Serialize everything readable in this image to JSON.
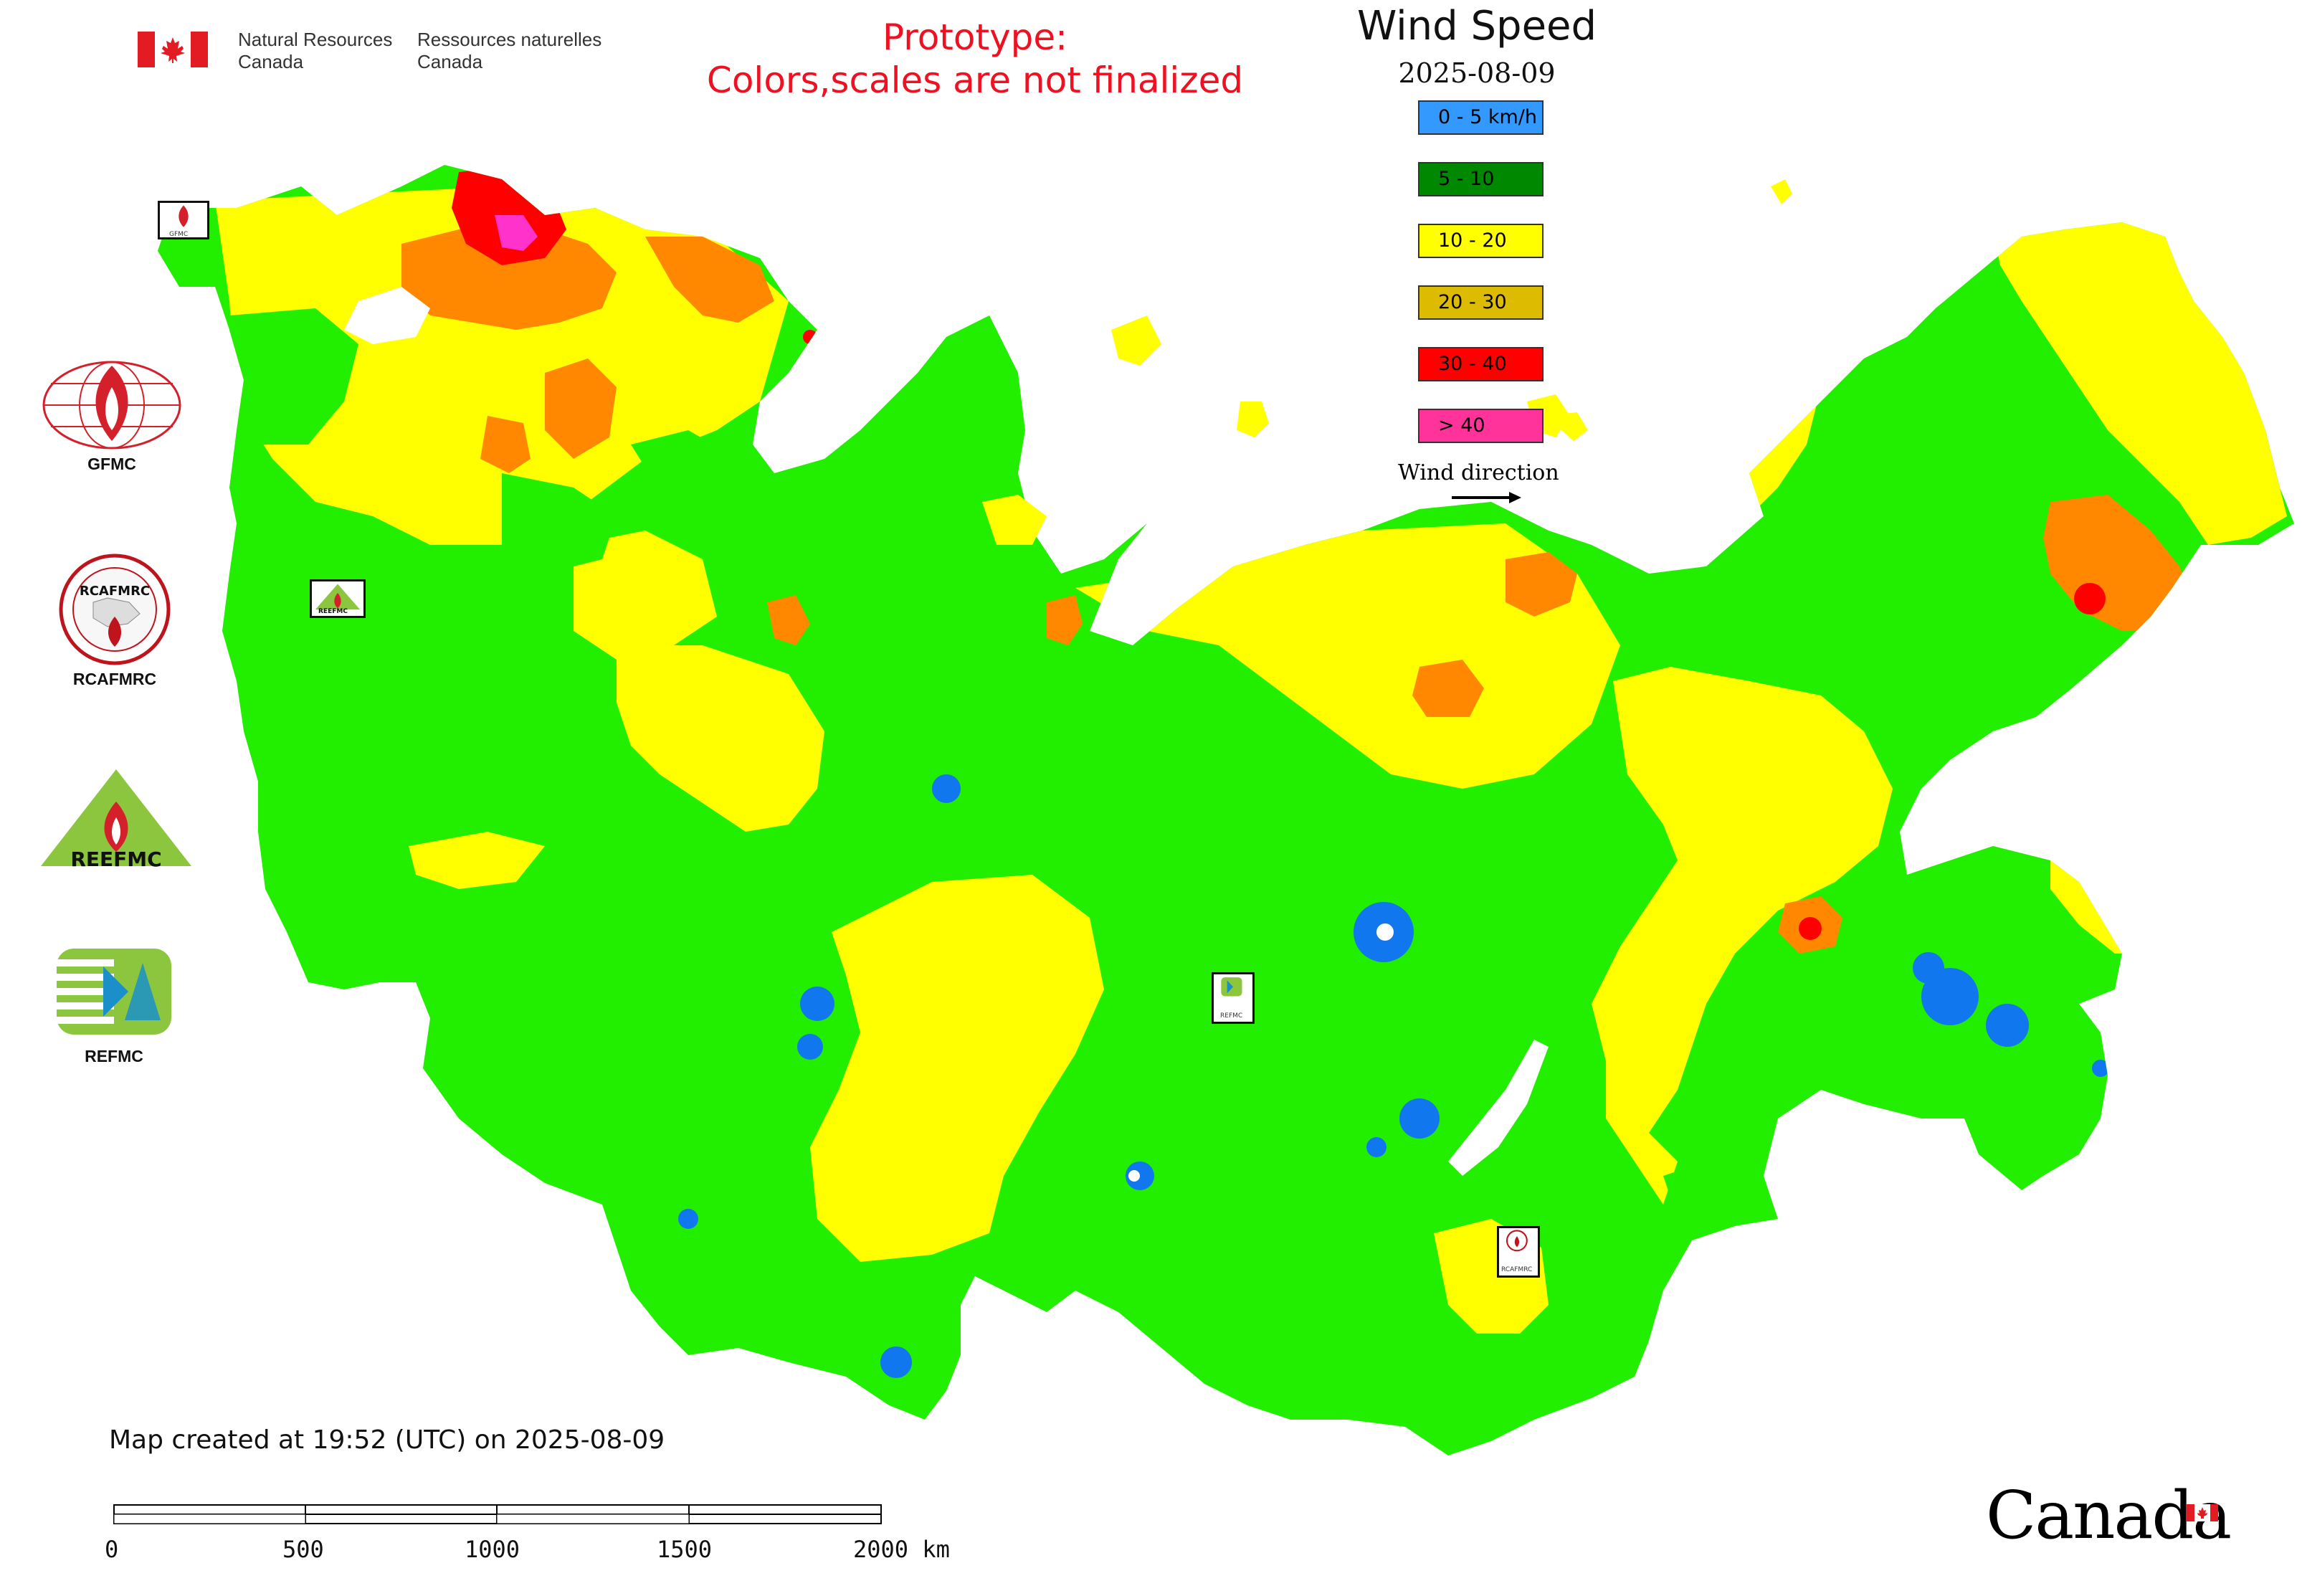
{
  "header": {
    "org_en_line1": "Natural Resources",
    "org_en_line2": "Canada",
    "org_fr_line1": "Ressources naturelles",
    "org_fr_line2": "Canada",
    "prototype_line1": "Prototype:",
    "prototype_line2": "Colors,scales are not finalized"
  },
  "map": {
    "title": "Wind Speed",
    "date": "2025-08-09",
    "legend": [
      {
        "label": "0 - 5 km/h",
        "color": "#3399ff"
      },
      {
        "label": "5 - 10",
        "color": "#008800"
      },
      {
        "label": "10 - 20",
        "color": "#ffff00"
      },
      {
        "label": "20 - 30",
        "color": "#ddbb00"
      },
      {
        "label": "30 - 40",
        "color": "#ff0000"
      },
      {
        "label": "> 40",
        "color": "#ff3399"
      }
    ],
    "wind_direction_label": "Wind direction",
    "map_colors": {
      "calm": "#1177ee",
      "light": "#22ee00",
      "moderate": "#ffff00",
      "fresh": "#ff8800",
      "strong": "#ff0000",
      "gale": "#ff33cc"
    },
    "center_markers": [
      {
        "label": "GFMC"
      },
      {
        "label": "REEFMC"
      },
      {
        "label": "REFMC"
      },
      {
        "label": "RCAFMRC"
      }
    ]
  },
  "sidebar": {
    "logos": [
      {
        "label": "GFMC",
        "icon": "gfmc-logo-icon"
      },
      {
        "label": "RCAFMRC",
        "icon": "rcafmrc-logo-icon"
      },
      {
        "label": "REEFMC",
        "icon": "reefmc-logo-icon"
      },
      {
        "label": "REFMC",
        "icon": "refmc-logo-icon"
      }
    ]
  },
  "footer": {
    "created_text": "Map created at 19:52 (UTC) on 2025-08-09",
    "scale_ticks": [
      "0",
      "500",
      "1000",
      "1500",
      "2000 km"
    ],
    "canada_wordmark": "Canada"
  }
}
